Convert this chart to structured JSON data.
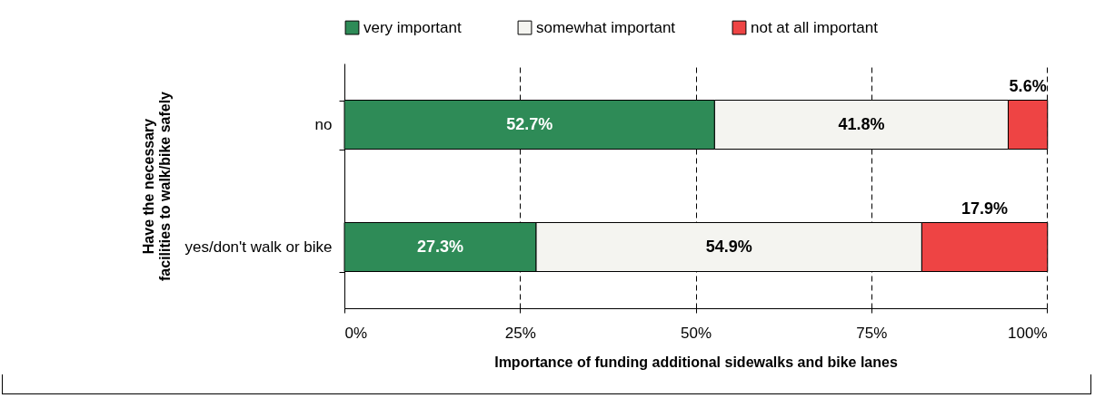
{
  "chart_data": {
    "type": "bar",
    "orientation": "horizontal",
    "stacked": true,
    "xlabel": "Importance of funding additional sidewalks and bike lanes",
    "ylabel": "Have the necessary\nfacilities to walk/bike safely",
    "categories": [
      "no",
      "yes/don't walk or bike"
    ],
    "series": [
      {
        "name": "very important",
        "color": "#2e8b57",
        "values": [
          52.7,
          27.3
        ],
        "value_labels": [
          "52.7%",
          "27.3%"
        ]
      },
      {
        "name": "somewhat important",
        "color": "#f4f4f0",
        "values": [
          41.8,
          54.9
        ],
        "value_labels": [
          "41.8%",
          "54.9%"
        ]
      },
      {
        "name": "not at all important",
        "color": "#ee4444",
        "values": [
          5.6,
          17.9
        ],
        "value_labels": [
          "5.6%",
          "17.9%"
        ]
      }
    ],
    "xlim": [
      0,
      100
    ],
    "xticks": [
      {
        "value": 0,
        "label": "0%"
      },
      {
        "value": 25,
        "label": "25%"
      },
      {
        "value": 50,
        "label": "50%"
      },
      {
        "value": 75,
        "label": "75%"
      },
      {
        "value": 100,
        "label": "100%"
      }
    ],
    "grid": "x",
    "legend": "top"
  }
}
